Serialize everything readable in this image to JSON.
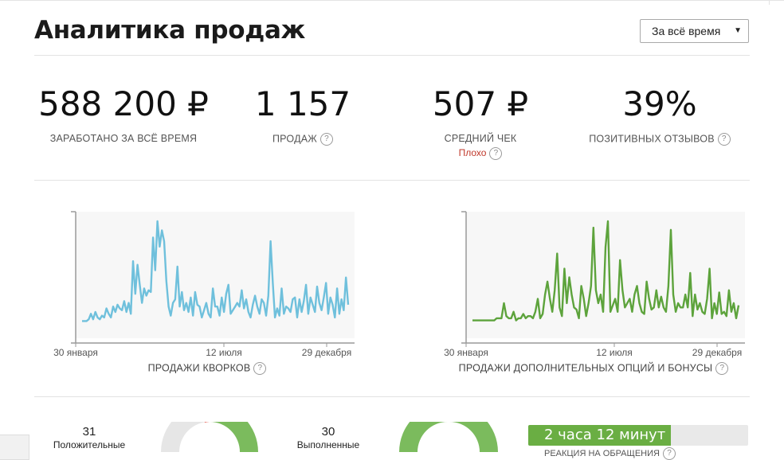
{
  "header": {
    "title": "Аналитика продаж",
    "period_select": {
      "value": "За всё время"
    }
  },
  "stats": [
    {
      "value": "588 200 ₽",
      "label": "ЗАРАБОТАНО ЗА ВСЁ ВРЕМЯ",
      "help": false
    },
    {
      "value": "1 157",
      "label": "ПРОДАЖ",
      "help": true
    },
    {
      "value": "507 ₽",
      "label": "СРЕДНИЙ ЧЕК",
      "help": false,
      "sub": "Плохо"
    },
    {
      "value": "39%",
      "label": "ПОЗИТИВНЫХ ОТЗЫВОВ",
      "help": true
    }
  ],
  "help_glyph": "?",
  "chart_data": [
    {
      "type": "line",
      "title": "",
      "caption": "ПРОДАЖИ КВОРКОВ",
      "x_ticks": [
        "30 января",
        "12 июля",
        "29 декабря"
      ],
      "color": "#6fc0dc",
      "grid": false,
      "values": [
        2,
        2,
        2,
        3,
        6,
        3,
        7,
        4,
        3,
        5,
        4,
        9,
        6,
        4,
        10,
        7,
        11,
        9,
        8,
        13,
        7,
        12,
        6,
        35,
        17,
        33,
        22,
        12,
        20,
        16,
        19,
        18,
        48,
        30,
        57,
        43,
        52,
        46,
        24,
        10,
        5,
        12,
        14,
        32,
        10,
        18,
        8,
        12,
        7,
        15,
        5,
        18,
        11,
        10,
        4,
        8,
        12,
        6,
        4,
        20,
        10,
        10,
        5,
        15,
        7,
        17,
        22,
        6,
        8,
        10,
        12,
        10,
        19,
        9,
        14,
        7,
        4,
        11,
        16,
        10,
        6,
        14,
        12,
        5,
        16,
        46,
        23,
        4,
        9,
        5,
        20,
        6,
        10,
        9,
        7,
        14,
        15,
        4,
        14,
        7,
        13,
        22,
        6,
        15,
        11,
        7,
        21,
        12,
        8,
        15,
        23,
        6,
        15,
        11,
        4,
        20,
        6,
        14,
        8,
        26,
        11
      ]
    },
    {
      "type": "line",
      "title": "",
      "caption": "ПРОДАЖИ ДОПОЛНИТЕЛЬНЫХ ОПЦИЙ И БОНУСЫ",
      "x_ticks": [
        "30 января",
        "12 июля",
        "29 декабря"
      ],
      "color": "#5da33c",
      "grid": false,
      "values": [
        2,
        2,
        2,
        2,
        2,
        2,
        2,
        2,
        2,
        2,
        3,
        3,
        3,
        10,
        4,
        3,
        3,
        6,
        2,
        3,
        3,
        5,
        3,
        4,
        4,
        3,
        6,
        12,
        3,
        5,
        14,
        20,
        12,
        6,
        16,
        33,
        8,
        4,
        26,
        10,
        22,
        14,
        8,
        7,
        3,
        18,
        12,
        4,
        10,
        18,
        45,
        16,
        10,
        14,
        6,
        36,
        48,
        6,
        9,
        12,
        6,
        30,
        16,
        8,
        10,
        12,
        6,
        14,
        18,
        10,
        6,
        5,
        20,
        12,
        7,
        8,
        16,
        8,
        13,
        8,
        6,
        18,
        44,
        14,
        6,
        10,
        8,
        8,
        14,
        8,
        24,
        4,
        14,
        7,
        10,
        6,
        5,
        12,
        26,
        3,
        10,
        5,
        15,
        5,
        6,
        4,
        16,
        6,
        10,
        3,
        9
      ]
    }
  ],
  "bottom": {
    "positive_count": "31",
    "positive_label": "Положительные",
    "done_count": "30",
    "done_label": "Выполненные",
    "response_time": "2 часа 12 минут",
    "response_fraction": 0.65,
    "response_label": "РЕАКЦИЯ НА ОБРАЩЕНИЯ"
  }
}
